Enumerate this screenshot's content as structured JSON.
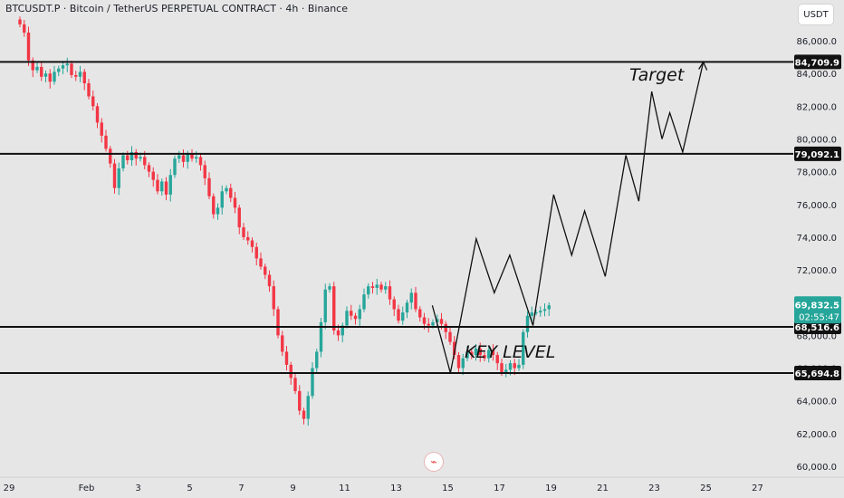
{
  "header": {
    "title": "BTCUSDT.P · Bitcoin / TetherUS PERPETUAL CONTRACT · 4h · Binance",
    "currency": "USDT"
  },
  "annotations": {
    "target": "Target",
    "key_level": "KEY LEVEL"
  },
  "colors": {
    "background": "#e6e6e6",
    "up": "#26a69a",
    "down": "#f23645",
    "line": "#111111",
    "price_label": "#26a69a"
  },
  "logo_icon": "lightning-icon",
  "chart_data": {
    "type": "candlestick",
    "ylim": [
      59800,
      87600
    ],
    "price_ticks": [
      60000,
      62000,
      64000,
      66000,
      68000,
      70000,
      72000,
      74000,
      76000,
      78000,
      80000,
      82000,
      84000,
      86000
    ],
    "price_tick_labels": [
      "60,000.0",
      "62,000.0",
      "64,000.0",
      "66,000.0",
      "68,000.0",
      "70,000.0",
      "72,000.0",
      "74,000.0",
      "76,000.0",
      "78,000.0",
      "80,000.0",
      "82,000.0",
      "84,000.0",
      "86,000.0"
    ],
    "x_tick_labels": [
      "29",
      "Feb",
      "3",
      "5",
      "7",
      "9",
      "11",
      "13",
      "15",
      "17",
      "19",
      "21",
      "23",
      "25",
      "27"
    ],
    "horizontal_levels": [
      {
        "price": 84709.9,
        "label": "84,709.9"
      },
      {
        "price": 79092.1,
        "label": "79,092.1"
      },
      {
        "price": 68516.6,
        "label": "68,516.6"
      },
      {
        "price": 65694.8,
        "label": "65,694.8"
      }
    ],
    "current_price": {
      "price": 69832.5,
      "label": "69,832.5",
      "countdown": "02:55:47"
    },
    "candle_closes": [
      87000,
      86500,
      84800,
      84200,
      84400,
      83800,
      84000,
      83500,
      84100,
      84300,
      84500,
      84600,
      83900,
      83800,
      84100,
      83400,
      82600,
      82000,
      81000,
      80200,
      79400,
      78500,
      77000,
      78200,
      79000,
      78700,
      79200,
      78800,
      78900,
      78400,
      78000,
      77500,
      76800,
      77400,
      76600,
      77800,
      78800,
      79000,
      78600,
      79100,
      78800,
      78900,
      78400,
      77600,
      76500,
      75400,
      75800,
      76800,
      77000,
      76400,
      75800,
      74600,
      74000,
      73800,
      73400,
      72700,
      72200,
      71700,
      71000,
      69600,
      68000,
      67000,
      66200,
      65400,
      64600,
      63400,
      62900,
      64300,
      66000,
      67000,
      68800,
      70800,
      71000,
      68300,
      68000,
      68600,
      69500,
      69200,
      69000,
      69600,
      70500,
      71000,
      70900,
      71100,
      70800,
      71000,
      70200,
      69600,
      68900,
      69400,
      70000,
      70600,
      69600,
      69100,
      68700,
      68600,
      68800,
      69000,
      68700,
      68200,
      67600,
      66800,
      66000,
      66600,
      67000,
      66800,
      67200,
      66800,
      66600,
      67100,
      66800,
      66300,
      65700,
      65900,
      66300,
      66000,
      66200,
      68200,
      69200,
      69400,
      69400,
      69500,
      69600,
      69832.5
    ],
    "projection_path": [
      69832.5,
      65700,
      73900,
      70600,
      72900,
      68600,
      76600,
      72900,
      75600,
      71600,
      79000,
      76200,
      82900,
      80000,
      81600,
      79200,
      84700
    ],
    "projection_dates": [
      "Feb 14.4",
      "Feb 15.1",
      "Feb 16.1",
      "Feb 16.8",
      "Feb 17.4",
      "Feb 18.3",
      "Feb 19.1",
      "Feb 19.8",
      "Feb 20.3",
      "Feb 21.1",
      "Feb 21.9",
      "Feb 22.4",
      "Feb 22.9",
      "Feb 23.3",
      "Feb 23.6",
      "Feb 24.1",
      "Feb 24.9"
    ]
  }
}
